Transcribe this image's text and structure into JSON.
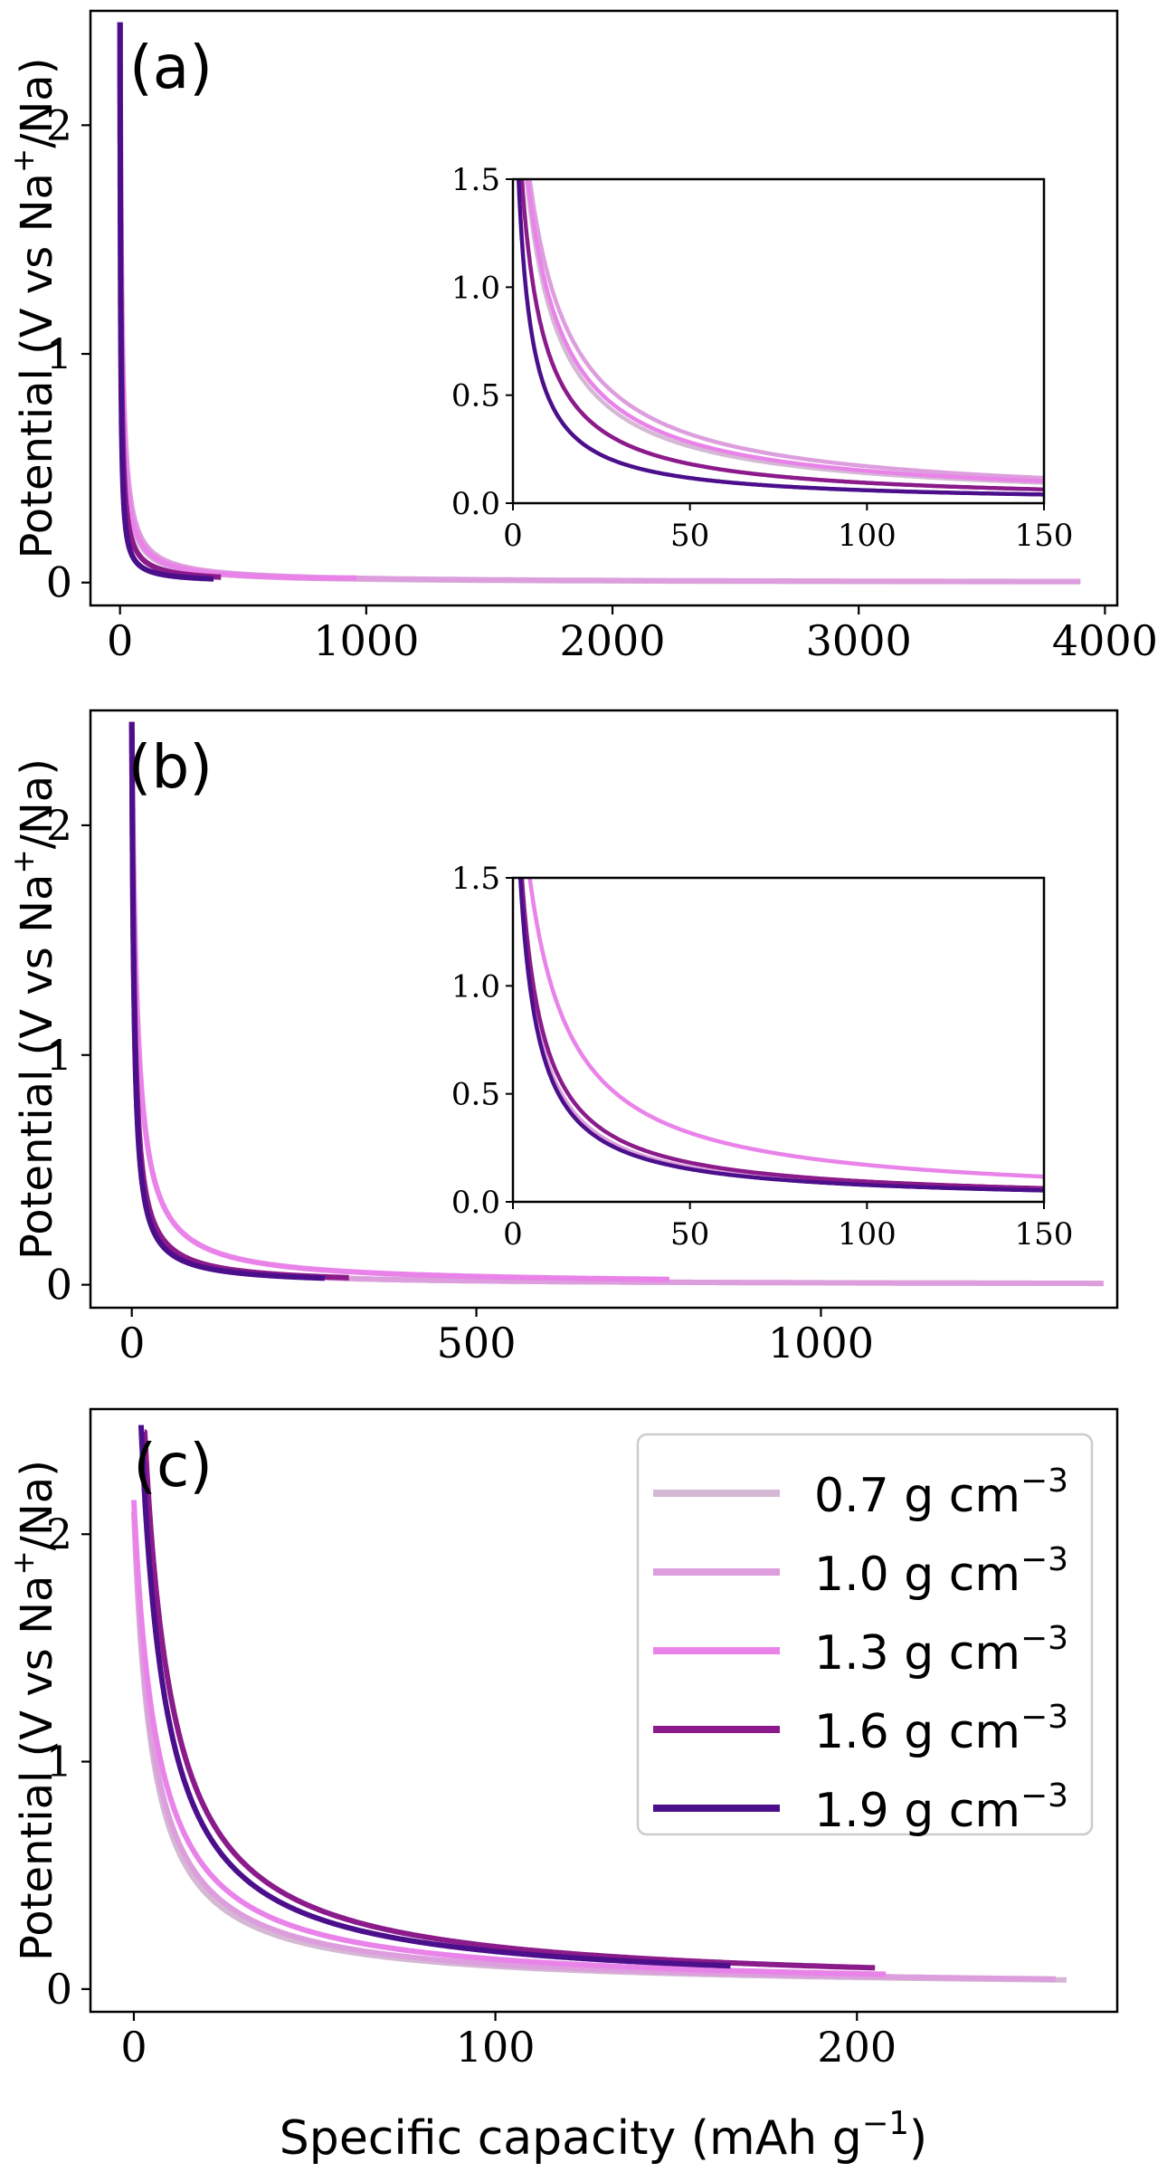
{
  "figure": {
    "ylabel_main": "Potential (V vs Na",
    "ylabel_sup": "+",
    "ylabel_tail": "/Na)",
    "xlabel_main": "Specific capacity (mAh g",
    "xlabel_sup": "−1",
    "xlabel_tail": ")"
  },
  "legend": {
    "unit_main": "g cm",
    "unit_sup": "−3",
    "entries": [
      {
        "label": "0.7",
        "color": "#d4b8d4"
      },
      {
        "label": "1.0",
        "color": "#dd9edd"
      },
      {
        "label": "1.3",
        "color": "#e983e9"
      },
      {
        "label": "1.6",
        "color": "#8b1a8b"
      },
      {
        "label": "1.9",
        "color": "#4b0f8b"
      }
    ]
  },
  "chart_data": [
    {
      "type": "line",
      "panel": "(a)",
      "xlim": [
        -120,
        4050
      ],
      "ylim": [
        -0.1,
        2.5
      ],
      "xticks": [
        "0",
        "1000",
        "2000",
        "3000",
        "4000"
      ],
      "yticks": [
        "0",
        "1",
        "2"
      ],
      "series": [
        {
          "name": "0.7 g cm−3",
          "x_end": 3900,
          "tail": 0.0,
          "k": 6.0
        },
        {
          "name": "1.0 g cm−3",
          "x_end": 3900,
          "tail": 0.0,
          "k": 7.5
        },
        {
          "name": "1.3 g cm−3",
          "x_end": 960,
          "tail": 0.02,
          "k": 6.5
        },
        {
          "name": "1.6 g cm−3",
          "x_end": 410,
          "tail": 0.02,
          "k": 4.0
        },
        {
          "name": "1.9 g cm−3",
          "x_end": 380,
          "tail": 0.01,
          "k": 2.5
        }
      ],
      "inset": {
        "xlim": [
          0,
          150
        ],
        "ylim": [
          0,
          1.5
        ],
        "xticks": [
          "0",
          "50",
          "100",
          "150"
        ],
        "yticks": [
          "0.0",
          "0.5",
          "1.0",
          "1.5"
        ],
        "series": [
          {
            "name": "0.7 g cm−3",
            "k": 6.0
          },
          {
            "name": "1.0 g cm−3",
            "k": 7.5
          },
          {
            "name": "1.3 g cm−3",
            "k": 6.5
          },
          {
            "name": "1.6 g cm−3",
            "k": 4.0
          },
          {
            "name": "1.9 g cm−3",
            "k": 2.5
          }
        ]
      }
    },
    {
      "type": "line",
      "panel": "(b)",
      "xlim": [
        -60,
        1430
      ],
      "ylim": [
        -0.1,
        2.5
      ],
      "xticks": [
        "0",
        "500",
        "1000"
      ],
      "yticks": [
        "0",
        "1",
        "2"
      ],
      "series": [
        {
          "name": "0.7 g cm−3",
          "x_end": 1410,
          "tail": 0.0,
          "k": 3.5
        },
        {
          "name": "1.0 g cm−3",
          "x_end": 1410,
          "tail": 0.0,
          "k": 3.5
        },
        {
          "name": "1.3 g cm−3",
          "x_end": 780,
          "tail": 0.02,
          "k": 7.5
        },
        {
          "name": "1.6 g cm−3",
          "x_end": 315,
          "tail": 0.02,
          "k": 4.0
        },
        {
          "name": "1.9 g cm−3",
          "x_end": 280,
          "tail": 0.02,
          "k": 3.3
        }
      ],
      "inset": {
        "xlim": [
          0,
          150
        ],
        "ylim": [
          0,
          1.5
        ],
        "xticks": [
          "0",
          "50",
          "100",
          "150"
        ],
        "yticks": [
          "0.0",
          "0.5",
          "1.0",
          "1.5"
        ],
        "series": [
          {
            "name": "0.7 g cm−3",
            "k": 3.5
          },
          {
            "name": "1.0 g cm−3",
            "k": 3.5
          },
          {
            "name": "1.3 g cm−3",
            "k": 7.5
          },
          {
            "name": "1.6 g cm−3",
            "k": 4.0
          },
          {
            "name": "1.9 g cm−3",
            "k": 3.3
          }
        ]
      }
    },
    {
      "type": "line",
      "panel": "(c)",
      "xlim": [
        -12,
        272
      ],
      "ylim": [
        -0.1,
        2.55
      ],
      "xticks": [
        "0",
        "100",
        "200"
      ],
      "yticks": [
        "0",
        "1",
        "2"
      ],
      "series": [
        {
          "name": "0.7 g cm−3",
          "x_start": 0,
          "x_end": 258,
          "v0": 2.1,
          "k": 5.0
        },
        {
          "name": "1.0 g cm−3",
          "x_start": 0,
          "x_end": 255,
          "v0": 2.1,
          "k": 5.5
        },
        {
          "name": "1.3 g cm−3",
          "x_start": 0,
          "x_end": 208,
          "v0": 2.15,
          "k": 6.5
        },
        {
          "name": "1.6 g cm−3",
          "x_start": 3,
          "x_end": 205,
          "v0": 2.45,
          "k": 8.0
        },
        {
          "name": "1.9 g cm−3",
          "x_start": 2,
          "x_end": 165,
          "v0": 2.48,
          "k": 7.0
        }
      ]
    }
  ]
}
